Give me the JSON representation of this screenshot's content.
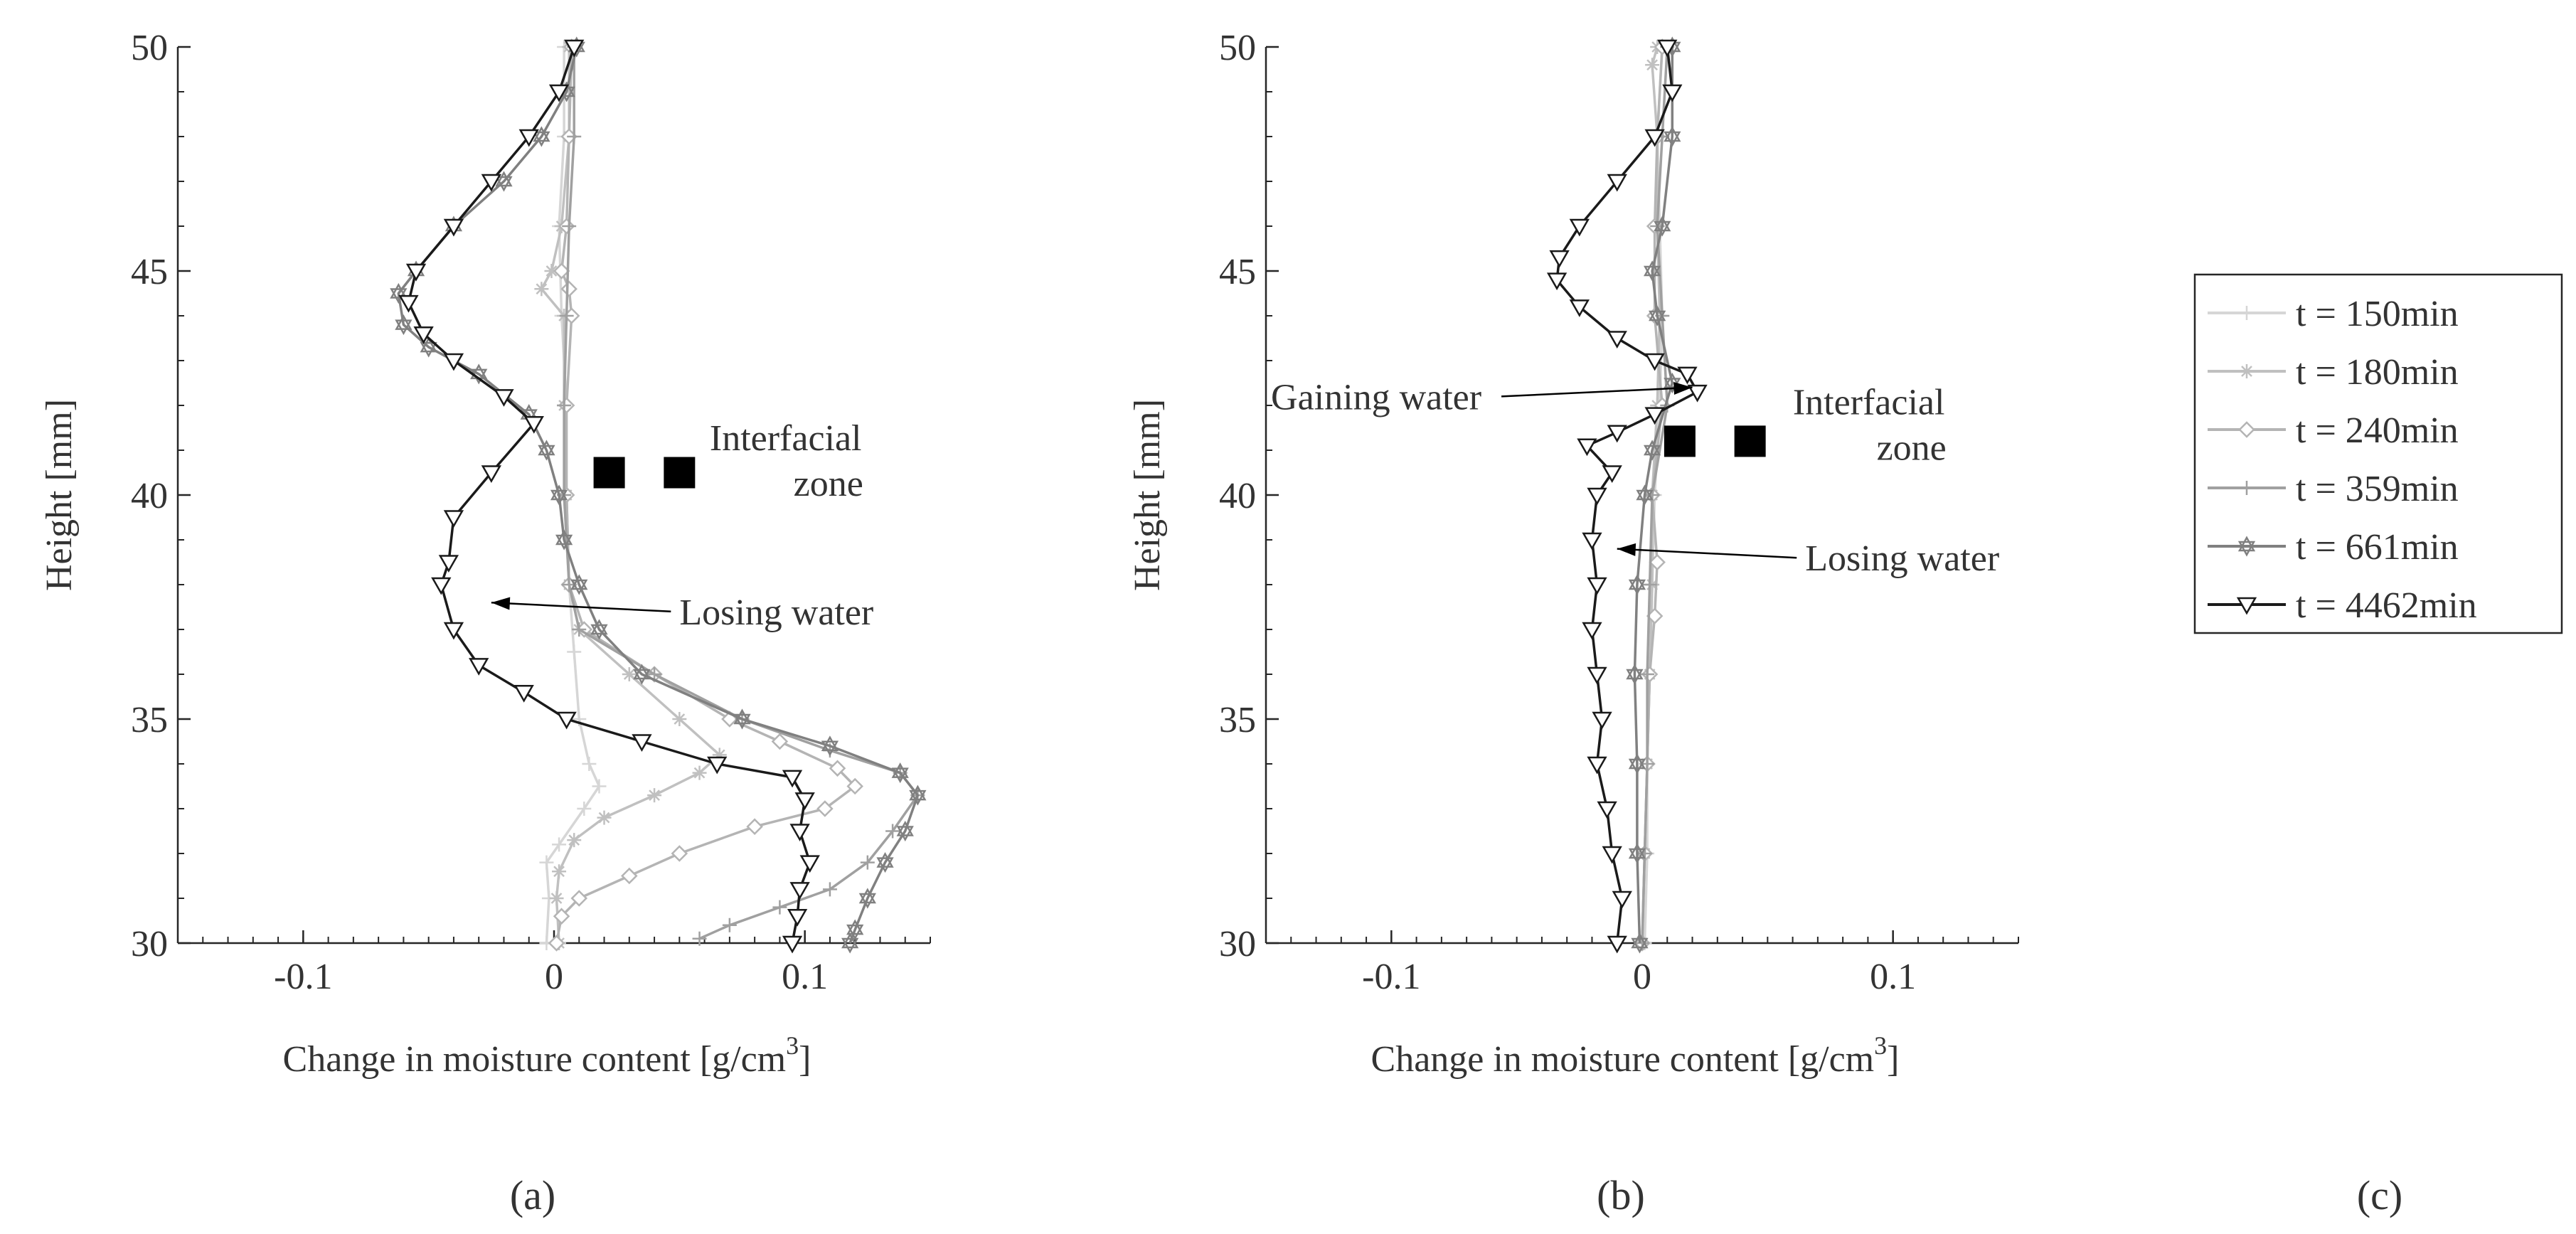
{
  "chart_data": [
    {
      "panel": "a",
      "type": "line",
      "panel_label": "(a)",
      "xlabel": "Change in moisture content [g/cm",
      "xlabel_sup": "3",
      "xlabel_end": "]",
      "ylabel": "Height [mm]",
      "xlim": [
        -0.15,
        0.15
      ],
      "ylim": [
        30,
        50
      ],
      "xticks": [
        -0.1,
        0,
        0.1
      ],
      "xtick_labels": [
        "-0.1",
        "0",
        "0.1"
      ],
      "yticks": [
        30,
        35,
        40,
        45,
        50
      ],
      "ytick_labels": [
        "30",
        "35",
        "40",
        "45",
        "50"
      ],
      "annotations": [
        {
          "text": "Losing water",
          "arrow_to": [
            -0.025,
            37.6
          ],
          "text_at": [
            0.05,
            37.4
          ],
          "anchor": "start"
        }
      ],
      "interfacial_zone": {
        "squares": [
          [
            0.022,
            40.5
          ],
          [
            0.05,
            40.5
          ]
        ],
        "label_line1": "Interfacial",
        "label_line2": "zone",
        "label_at": [
          0.064,
          41.0
        ]
      },
      "series": [
        {
          "name": "t = 150min",
          "color": "#d6d6d6",
          "marker": "plus",
          "points": [
            [
              0.004,
              50
            ],
            [
              0.004,
              48
            ],
            [
              0.002,
              46
            ],
            [
              0.003,
              44
            ],
            [
              0.005,
              42
            ],
            [
              0.004,
              40
            ],
            [
              0.006,
              38
            ],
            [
              0.008,
              36.5
            ],
            [
              0.01,
              35
            ],
            [
              0.014,
              34
            ],
            [
              0.018,
              33.5
            ],
            [
              0.012,
              33
            ],
            [
              0.002,
              32.2
            ],
            [
              -0.003,
              31.8
            ],
            [
              -0.002,
              31
            ],
            [
              -0.003,
              30
            ]
          ]
        },
        {
          "name": "t = 180min",
          "color": "#c0c0c0",
          "marker": "star",
          "points": [
            [
              0.006,
              50
            ],
            [
              0.006,
              48
            ],
            [
              0.003,
              46
            ],
            [
              -0.001,
              45
            ],
            [
              -0.005,
              44.6
            ],
            [
              0.004,
              44
            ],
            [
              0.004,
              42
            ],
            [
              0.005,
              40
            ],
            [
              0.006,
              38
            ],
            [
              0.01,
              37
            ],
            [
              0.03,
              36
            ],
            [
              0.05,
              35
            ],
            [
              0.066,
              34.2
            ],
            [
              0.058,
              33.8
            ],
            [
              0.04,
              33.3
            ],
            [
              0.02,
              32.8
            ],
            [
              0.008,
              32.3
            ],
            [
              0.002,
              31.6
            ],
            [
              0.001,
              31
            ],
            [
              0.002,
              30
            ]
          ]
        },
        {
          "name": "t = 240min",
          "color": "#b4b4b4",
          "marker": "diamond",
          "points": [
            [
              0.007,
              50
            ],
            [
              0.006,
              48
            ],
            [
              0.005,
              46
            ],
            [
              0.003,
              45
            ],
            [
              0.006,
              44.6
            ],
            [
              0.007,
              44
            ],
            [
              0.005,
              42
            ],
            [
              0.005,
              40
            ],
            [
              0.006,
              38
            ],
            [
              0.012,
              37
            ],
            [
              0.04,
              36
            ],
            [
              0.07,
              35
            ],
            [
              0.09,
              34.5
            ],
            [
              0.113,
              33.9
            ],
            [
              0.12,
              33.5
            ],
            [
              0.108,
              33
            ],
            [
              0.08,
              32.6
            ],
            [
              0.05,
              32
            ],
            [
              0.03,
              31.5
            ],
            [
              0.01,
              31
            ],
            [
              0.003,
              30.6
            ],
            [
              0.001,
              30
            ]
          ]
        },
        {
          "name": "t = 359min",
          "color": "#a0a0a0",
          "marker": "plus",
          "points": [
            [
              0.008,
              50
            ],
            [
              0.008,
              48
            ],
            [
              0.006,
              46
            ],
            [
              0.005,
              44
            ],
            [
              0.004,
              42
            ],
            [
              0.004,
              40
            ],
            [
              0.006,
              38
            ],
            [
              0.01,
              37
            ],
            [
              0.04,
              36
            ],
            [
              0.075,
              35
            ],
            [
              0.11,
              34.3
            ],
            [
              0.138,
              33.8
            ],
            [
              0.145,
              33.3
            ],
            [
              0.135,
              32.5
            ],
            [
              0.125,
              31.8
            ],
            [
              0.11,
              31.2
            ],
            [
              0.09,
              30.8
            ],
            [
              0.07,
              30.4
            ],
            [
              0.058,
              30.1
            ]
          ]
        },
        {
          "name": "t = 661min",
          "color": "#808080",
          "marker": "hexstar",
          "points": [
            [
              0.009,
              50
            ],
            [
              0.005,
              49
            ],
            [
              -0.005,
              48
            ],
            [
              -0.02,
              47
            ],
            [
              -0.04,
              46
            ],
            [
              -0.055,
              45
            ],
            [
              -0.062,
              44.5
            ],
            [
              -0.06,
              43.8
            ],
            [
              -0.05,
              43.3
            ],
            [
              -0.03,
              42.7
            ],
            [
              -0.01,
              41.8
            ],
            [
              -0.003,
              41
            ],
            [
              0.002,
              40
            ],
            [
              0.004,
              39
            ],
            [
              0.01,
              38
            ],
            [
              0.018,
              37
            ],
            [
              0.035,
              36
            ],
            [
              0.075,
              35
            ],
            [
              0.11,
              34.4
            ],
            [
              0.138,
              33.8
            ],
            [
              0.145,
              33.3
            ],
            [
              0.14,
              32.5
            ],
            [
              0.132,
              31.8
            ],
            [
              0.125,
              31
            ],
            [
              0.12,
              30.3
            ],
            [
              0.118,
              30
            ]
          ]
        },
        {
          "name": "t = 4462min",
          "color": "#1a1a1a",
          "marker": "tri_down",
          "points": [
            [
              0.008,
              50
            ],
            [
              0.002,
              49
            ],
            [
              -0.01,
              48
            ],
            [
              -0.025,
              47
            ],
            [
              -0.04,
              46
            ],
            [
              -0.055,
              45
            ],
            [
              -0.058,
              44.3
            ],
            [
              -0.052,
              43.6
            ],
            [
              -0.04,
              43
            ],
            [
              -0.02,
              42.2
            ],
            [
              -0.008,
              41.6
            ],
            [
              -0.025,
              40.5
            ],
            [
              -0.04,
              39.5
            ],
            [
              -0.042,
              38.5
            ],
            [
              -0.045,
              38
            ],
            [
              -0.04,
              37
            ],
            [
              -0.03,
              36.2
            ],
            [
              -0.012,
              35.6
            ],
            [
              0.005,
              35
            ],
            [
              0.035,
              34.5
            ],
            [
              0.065,
              34
            ],
            [
              0.095,
              33.7
            ],
            [
              0.1,
              33.2
            ],
            [
              0.098,
              32.5
            ],
            [
              0.102,
              31.8
            ],
            [
              0.098,
              31.2
            ],
            [
              0.097,
              30.6
            ],
            [
              0.095,
              30
            ]
          ]
        }
      ]
    },
    {
      "panel": "b",
      "type": "line",
      "panel_label": "(b)",
      "xlabel": "Change in moisture content [g/cm",
      "xlabel_sup": "3",
      "xlabel_end": "]",
      "ylabel": "Height [mm]",
      "xlim": [
        -0.15,
        0.15
      ],
      "ylim": [
        30,
        50
      ],
      "xticks": [
        -0.1,
        0,
        0.1
      ],
      "xtick_labels": [
        "-0.1",
        "0",
        "0.1"
      ],
      "yticks": [
        30,
        35,
        40,
        45,
        50
      ],
      "ytick_labels": [
        "30",
        "35",
        "40",
        "45",
        "50"
      ],
      "annotations": [
        {
          "text": "Gaining water",
          "arrow_to": [
            0.02,
            42.4
          ],
          "text_at": [
            -0.148,
            42.2
          ],
          "anchor": "start"
        },
        {
          "text": "Losing water",
          "arrow_to": [
            -0.01,
            38.8
          ],
          "text_at": [
            0.065,
            38.6
          ],
          "anchor": "start"
        }
      ],
      "interfacial_zone": {
        "squares": [
          [
            0.015,
            41.2
          ],
          [
            0.043,
            41.2
          ]
        ],
        "label_line1": "Interfacial",
        "label_line2": "zone",
        "label_at": [
          0.062,
          41.8
        ]
      },
      "series": [
        {
          "name": "t = 150min",
          "color": "#d6d6d6",
          "marker": "plus",
          "points": [
            [
              0.008,
              50
            ],
            [
              0.006,
              48
            ],
            [
              0.007,
              46
            ],
            [
              0.008,
              44
            ],
            [
              0.007,
              42
            ],
            [
              0.005,
              40
            ],
            [
              0.004,
              38
            ],
            [
              0.003,
              36
            ],
            [
              0.002,
              34
            ],
            [
              0.002,
              32
            ],
            [
              0.001,
              30
            ]
          ]
        },
        {
          "name": "t = 180min",
          "color": "#c0c0c0",
          "marker": "star",
          "points": [
            [
              0.006,
              50
            ],
            [
              0.004,
              49.6
            ],
            [
              0.006,
              48
            ],
            [
              0.006,
              46
            ],
            [
              0.007,
              44
            ],
            [
              0.006,
              42
            ],
            [
              0.004,
              40
            ],
            [
              0.004,
              38
            ],
            [
              0.003,
              36
            ],
            [
              0.002,
              34
            ],
            [
              0.001,
              32
            ],
            [
              0.0,
              30
            ]
          ]
        },
        {
          "name": "t = 240min",
          "color": "#b4b4b4",
          "marker": "diamond",
          "points": [
            [
              0.008,
              50
            ],
            [
              0.006,
              48
            ],
            [
              0.005,
              46
            ],
            [
              0.005,
              44
            ],
            [
              0.008,
              42
            ],
            [
              0.004,
              40
            ],
            [
              0.006,
              38.5
            ],
            [
              0.005,
              37.3
            ],
            [
              0.003,
              36
            ],
            [
              0.002,
              34
            ],
            [
              0.001,
              32
            ],
            [
              0.0,
              30
            ]
          ]
        },
        {
          "name": "t = 359min",
          "color": "#a0a0a0",
          "marker": "plus",
          "points": [
            [
              0.01,
              50
            ],
            [
              0.008,
              48
            ],
            [
              0.006,
              46
            ],
            [
              0.008,
              44
            ],
            [
              0.01,
              42
            ],
            [
              0.004,
              40
            ],
            [
              0.003,
              38
            ],
            [
              0.002,
              36
            ],
            [
              0.002,
              34
            ],
            [
              0.001,
              32
            ],
            [
              0.0,
              30
            ]
          ]
        },
        {
          "name": "t = 661min",
          "color": "#808080",
          "marker": "hexstar",
          "points": [
            [
              0.012,
              50
            ],
            [
              0.012,
              48
            ],
            [
              0.008,
              46
            ],
            [
              0.004,
              45
            ],
            [
              0.006,
              44
            ],
            [
              0.012,
              42.5
            ],
            [
              0.004,
              41
            ],
            [
              0.001,
              40
            ],
            [
              -0.002,
              38
            ],
            [
              -0.003,
              36
            ],
            [
              -0.002,
              34
            ],
            [
              -0.002,
              32
            ],
            [
              -0.001,
              30
            ]
          ]
        },
        {
          "name": "t = 4462min",
          "color": "#1a1a1a",
          "marker": "tri_down",
          "points": [
            [
              0.01,
              50
            ],
            [
              0.012,
              49
            ],
            [
              0.005,
              48
            ],
            [
              -0.01,
              47
            ],
            [
              -0.025,
              46
            ],
            [
              -0.033,
              45.3
            ],
            [
              -0.034,
              44.8
            ],
            [
              -0.025,
              44.2
            ],
            [
              -0.01,
              43.5
            ],
            [
              0.005,
              43
            ],
            [
              0.018,
              42.7
            ],
            [
              0.022,
              42.3
            ],
            [
              0.005,
              41.8
            ],
            [
              -0.01,
              41.4
            ],
            [
              -0.022,
              41.1
            ],
            [
              -0.012,
              40.5
            ],
            [
              -0.018,
              40
            ],
            [
              -0.02,
              39
            ],
            [
              -0.018,
              38
            ],
            [
              -0.02,
              37
            ],
            [
              -0.018,
              36
            ],
            [
              -0.016,
              35
            ],
            [
              -0.018,
              34
            ],
            [
              -0.014,
              33
            ],
            [
              -0.012,
              32
            ],
            [
              -0.008,
              31
            ],
            [
              -0.01,
              30
            ]
          ]
        }
      ]
    }
  ],
  "legend": {
    "panel_label": "(c)",
    "entries": [
      {
        "label": "t = 150min",
        "color": "#d6d6d6",
        "marker": "plus"
      },
      {
        "label": "t = 180min",
        "color": "#c0c0c0",
        "marker": "star"
      },
      {
        "label": "t = 240min",
        "color": "#b4b4b4",
        "marker": "diamond"
      },
      {
        "label": "t = 359min",
        "color": "#a0a0a0",
        "marker": "plus"
      },
      {
        "label": "t = 661min",
        "color": "#808080",
        "marker": "hexstar"
      },
      {
        "label": "t = 4462min",
        "color": "#1a1a1a",
        "marker": "tri_down"
      }
    ]
  }
}
